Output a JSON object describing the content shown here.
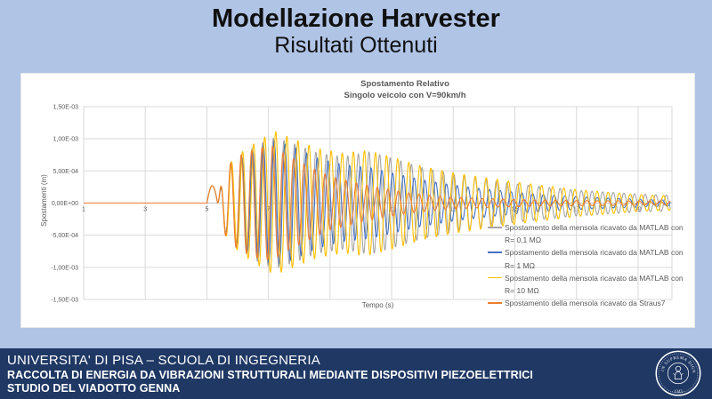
{
  "slide": {
    "title": "Modellazione Harvester",
    "subtitle": "Risultati Ottenuti"
  },
  "footer": {
    "line1": "UNIVERSITA' DI PISA – SCUOLA DI INGEGNERIA",
    "line2": "RACCOLTA DI ENERGIA DA VIBRAZIONI STRUTTURALI MEDIANTE DISPOSITIVI PIEZOELETTRICI",
    "line3": "STUDIO DEL VIADOTTO GENNA",
    "logo": {
      "motto": "IN SUPREMA DIGNITATIS",
      "year": "1343"
    }
  },
  "colors": {
    "slide_bg": "#b0c4e6",
    "footer_bg": "#1f3864",
    "chart_text": "#595959",
    "gridline": "#d9d9d9",
    "axis_line": "#bfbfbf"
  },
  "chart_data": {
    "type": "line",
    "title": "Spostamento Relativo",
    "subtitle": "Singolo veicolo con V=90km/h",
    "xlabel": "Tempo (s)",
    "ylabel": "Spostamenti (m)",
    "xlim": [
      1,
      20.1
    ],
    "ylim": [
      -0.0015,
      0.0015
    ],
    "grid": true,
    "legend_position": "inside-bottom-right",
    "x_ticks": [
      1,
      3,
      5,
      7,
      9,
      11,
      13,
      15,
      17,
      19
    ],
    "y_ticks": [
      {
        "label": "1,50E-03",
        "value": 0.0015
      },
      {
        "label": "1,00E-03",
        "value": 0.001
      },
      {
        "label": "5,00E-04",
        "value": 0.0005
      },
      {
        "label": "0,00E+00",
        "value": 0.0
      },
      {
        "label": "-5,00E-04",
        "value": -0.0005
      },
      {
        "label": "-1,00E-03",
        "value": -0.001
      },
      {
        "label": "-1,50E-03",
        "value": -0.0015
      }
    ],
    "waveform_model": {
      "note": "Damped oscillation estimated from plot: zero until t=5 s, entry bump, beating decay to t=20 s",
      "bump": {
        "t0": 5.0,
        "duration": 0.35,
        "amplitude": 0.00027
      }
    },
    "series": [
      {
        "label": "Spostamento della mensola ricavato da MATLAB con R= 0,1 MΩ",
        "color": "#a5a5a5",
        "freq_hz": 2.9,
        "onset_s": 5.35,
        "envelope_t_amp": [
          [
            5.35,
            0
          ],
          [
            5.5,
            0.00035
          ],
          [
            5.7,
            0.00055
          ],
          [
            6.1,
            0.00072
          ],
          [
            6.6,
            0.0009
          ],
          [
            7.2,
            0.00102
          ],
          [
            7.8,
            0.00093
          ],
          [
            8.6,
            0.00078
          ],
          [
            9.4,
            0.00072
          ],
          [
            10.3,
            0.0008
          ],
          [
            11.0,
            0.0007
          ],
          [
            12.0,
            0.00055
          ],
          [
            13.0,
            0.00045
          ],
          [
            14.0,
            0.00037
          ],
          [
            15.0,
            0.0003
          ],
          [
            16.0,
            0.00025
          ],
          [
            17.0,
            0.0002
          ],
          [
            18.0,
            0.00017
          ],
          [
            19.0,
            0.00014
          ],
          [
            20.1,
            0.00012
          ]
        ]
      },
      {
        "label": "Spostamento della mensola ricavato da MATLAB con R= 1 MΩ",
        "color": "#4472c4",
        "freq_hz": 2.86,
        "onset_s": 5.35,
        "envelope_t_amp": [
          [
            5.35,
            0
          ],
          [
            5.5,
            0.00035
          ],
          [
            5.7,
            0.00055
          ],
          [
            6.1,
            0.0007
          ],
          [
            6.6,
            0.00085
          ],
          [
            7.2,
            0.00097
          ],
          [
            7.8,
            0.00088
          ],
          [
            8.6,
            0.0007
          ],
          [
            9.4,
            0.0006
          ],
          [
            10.3,
            0.00055
          ],
          [
            11.0,
            0.00047
          ],
          [
            12.0,
            0.00036
          ],
          [
            13.0,
            0.00028
          ],
          [
            14.0,
            0.00022
          ],
          [
            15.0,
            0.00017
          ],
          [
            16.0,
            0.00013
          ],
          [
            17.0,
            0.0001
          ],
          [
            18.0,
            8e-05
          ],
          [
            19.0,
            6e-05
          ],
          [
            20.1,
            5e-05
          ]
        ]
      },
      {
        "label": "Spostamento della mensola ricavato da MATLAB con R= 10 MΩ",
        "color": "#ffc000",
        "freq_hz": 2.78,
        "onset_s": 5.35,
        "envelope_t_amp": [
          [
            5.35,
            0
          ],
          [
            5.5,
            0.00038
          ],
          [
            5.7,
            0.0006
          ],
          [
            6.1,
            0.00078
          ],
          [
            6.6,
            0.00095
          ],
          [
            7.2,
            0.00112
          ],
          [
            7.8,
            0.001
          ],
          [
            8.6,
            0.00085
          ],
          [
            9.4,
            0.00078
          ],
          [
            10.2,
            0.00082
          ],
          [
            11.0,
            0.00072
          ],
          [
            12.0,
            0.00057
          ],
          [
            13.0,
            0.00047
          ],
          [
            14.0,
            0.0004
          ],
          [
            15.0,
            0.00033
          ],
          [
            16.0,
            0.00027
          ],
          [
            17.0,
            0.00021
          ],
          [
            18.0,
            0.00017
          ],
          [
            19.0,
            0.00013
          ],
          [
            20.1,
            0.00011
          ]
        ]
      },
      {
        "label": "Spostamento della mensola ricavato da Straus7",
        "color": "#ed7d31",
        "freq_hz": 2.94,
        "onset_s": 5.35,
        "envelope_t_amp": [
          [
            5.35,
            0
          ],
          [
            5.5,
            0.0004
          ],
          [
            5.7,
            0.0006
          ],
          [
            6.1,
            0.00075
          ],
          [
            6.6,
            0.00085
          ],
          [
            7.1,
            0.0009
          ],
          [
            7.7,
            0.00072
          ],
          [
            8.4,
            0.00055
          ],
          [
            9.0,
            0.00042
          ],
          [
            9.8,
            0.00032
          ],
          [
            10.6,
            0.00024
          ],
          [
            11.4,
            0.00017
          ],
          [
            12.2,
            0.00012
          ],
          [
            13.0,
            9e-05
          ],
          [
            14.0,
            7e-05
          ],
          [
            15.5,
            5e-05
          ],
          [
            17.0,
            4e-05
          ],
          [
            18.5,
            3.5e-05
          ],
          [
            20.1,
            3e-05
          ]
        ]
      }
    ]
  }
}
